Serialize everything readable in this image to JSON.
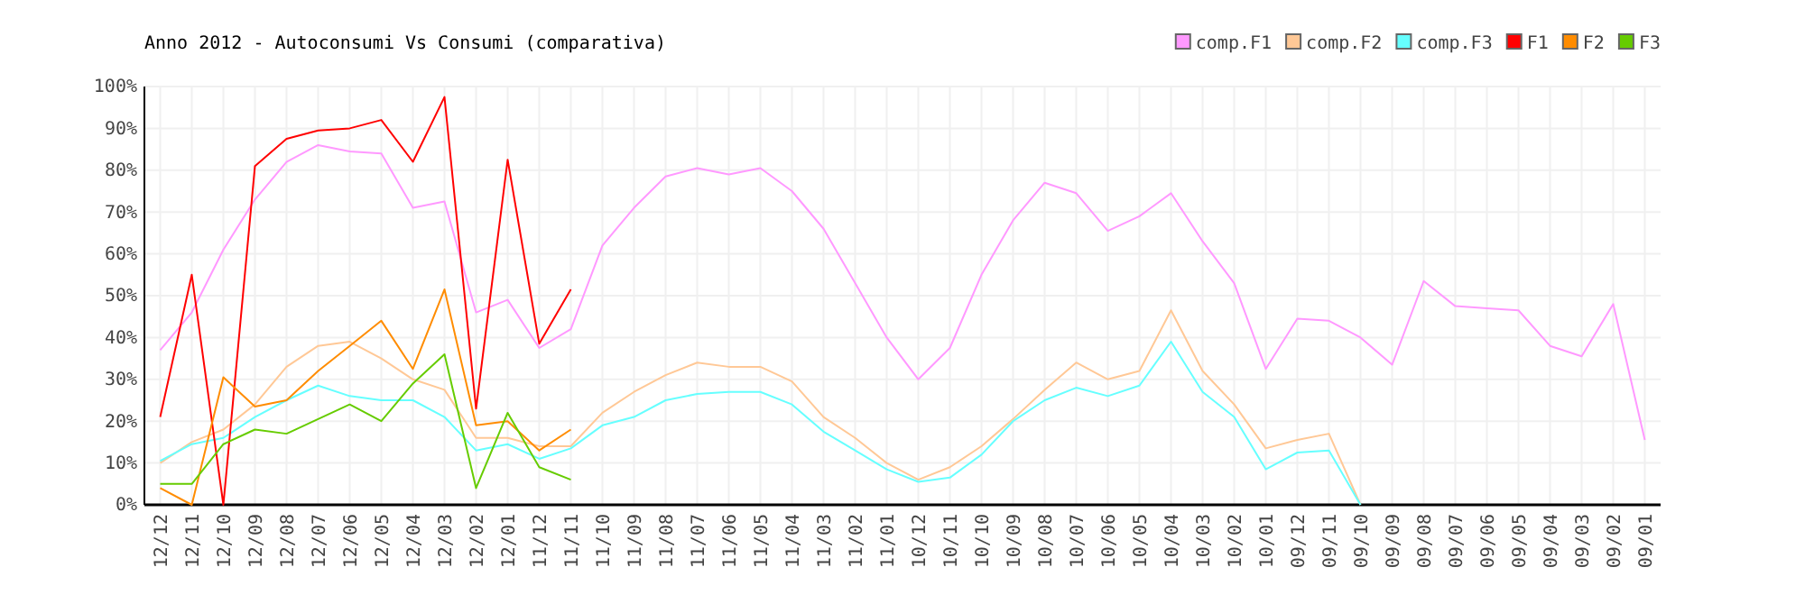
{
  "chart_data": {
    "type": "line",
    "title": "Anno 2012 - Autoconsumi Vs Consumi (comparativa)",
    "categories": [
      "12/12",
      "12/11",
      "12/10",
      "12/09",
      "12/08",
      "12/07",
      "12/06",
      "12/05",
      "12/04",
      "12/03",
      "12/02",
      "12/01",
      "11/12",
      "11/11",
      "11/10",
      "11/09",
      "11/08",
      "11/07",
      "11/06",
      "11/05",
      "11/04",
      "11/03",
      "11/02",
      "11/01",
      "10/12",
      "10/11",
      "10/10",
      "10/09",
      "10/08",
      "10/07",
      "10/06",
      "10/05",
      "10/04",
      "10/03",
      "10/02",
      "10/01",
      "09/12",
      "09/11",
      "09/10",
      "09/09",
      "09/08",
      "09/07",
      "09/06",
      "09/05",
      "09/04",
      "09/03",
      "09/02",
      "09/01"
    ],
    "series": [
      {
        "name": "comp.F1",
        "color": "#ff99ff",
        "values": [
          37,
          46,
          61,
          73,
          82,
          86,
          84.5,
          84,
          71,
          72.5,
          46,
          49,
          37.5,
          42,
          62,
          71,
          78.5,
          80.5,
          79,
          80.5,
          75,
          66,
          53,
          40,
          30,
          37.5,
          55,
          68,
          77,
          74.5,
          65.5,
          69,
          74.5,
          63,
          53,
          32.5,
          44.5,
          44,
          40,
          33.5,
          53.5,
          47.5,
          47,
          46.5,
          38,
          35.5,
          48,
          15.5
        ]
      },
      {
        "name": "comp.F2",
        "color": "#ffc896",
        "values": [
          10,
          15,
          18,
          24,
          33,
          38,
          39,
          35,
          30,
          27.5,
          16,
          16,
          14,
          14,
          22,
          27,
          31,
          34,
          33,
          33,
          29.5,
          21,
          16,
          10,
          6,
          9,
          14,
          20.5,
          27.5,
          34,
          30,
          32,
          46.5,
          32,
          24,
          13.5,
          15.5,
          17,
          0,
          null,
          null,
          null,
          null,
          null,
          null,
          null,
          null,
          null
        ]
      },
      {
        "name": "comp.F3",
        "color": "#66ffff",
        "values": [
          10.5,
          14.5,
          16,
          21,
          25,
          28.5,
          26,
          25,
          25,
          21,
          13,
          14.5,
          11,
          13.5,
          19,
          21,
          25,
          26.5,
          27,
          27,
          24,
          17.5,
          13,
          8.5,
          5.5,
          6.5,
          12,
          20,
          25,
          28,
          26,
          28.5,
          39,
          27,
          21,
          8.5,
          12.5,
          13,
          0,
          null,
          null,
          null,
          null,
          null,
          null,
          null,
          null,
          null
        ]
      },
      {
        "name": "F1",
        "color": "#ff0000",
        "values": [
          21,
          55,
          0,
          81,
          87.5,
          89.5,
          90,
          92,
          82,
          97.5,
          23,
          82.5,
          38.5,
          51.5,
          null,
          null,
          null,
          null,
          null,
          null,
          null,
          null,
          null,
          null,
          null,
          null,
          null,
          null,
          null,
          null,
          null,
          null,
          null,
          null,
          null,
          null,
          null,
          null,
          null,
          null,
          null,
          null,
          null,
          null,
          null,
          null,
          null,
          null
        ]
      },
      {
        "name": "F2",
        "color": "#ff8c00",
        "values": [
          4,
          0,
          30.5,
          23.5,
          25,
          32,
          38,
          44,
          32.5,
          51.5,
          19,
          20,
          13,
          18,
          null,
          null,
          null,
          null,
          null,
          null,
          null,
          null,
          null,
          null,
          null,
          null,
          null,
          null,
          null,
          null,
          null,
          null,
          null,
          null,
          null,
          null,
          null,
          null,
          null,
          null,
          null,
          null,
          null,
          null,
          null,
          null,
          null,
          null
        ]
      },
      {
        "name": "F3",
        "color": "#66cc00",
        "values": [
          5,
          5,
          14.5,
          18,
          17,
          20.5,
          24,
          20,
          29,
          36,
          4,
          22,
          9,
          6,
          null,
          null,
          null,
          null,
          null,
          null,
          null,
          null,
          null,
          null,
          null,
          null,
          null,
          null,
          null,
          null,
          null,
          null,
          null,
          null,
          null,
          null,
          null,
          null,
          null,
          null,
          null,
          null,
          null,
          null,
          null,
          null,
          null,
          null
        ]
      }
    ],
    "ylim": [
      0,
      100
    ],
    "yticks": [
      {
        "value": 0,
        "label": "0%"
      },
      {
        "value": 10,
        "label": "10%"
      },
      {
        "value": 20,
        "label": "20%"
      },
      {
        "value": 30,
        "label": "30%"
      },
      {
        "value": 40,
        "label": "40%"
      },
      {
        "value": 50,
        "label": "50%"
      },
      {
        "value": 60,
        "label": "60%"
      },
      {
        "value": 70,
        "label": "70%"
      },
      {
        "value": 80,
        "label": "80%"
      },
      {
        "value": 90,
        "label": "90%"
      },
      {
        "value": 100,
        "label": "100%"
      }
    ],
    "grid": true,
    "legend": "top right",
    "marker": "none",
    "line_style": "solid"
  }
}
